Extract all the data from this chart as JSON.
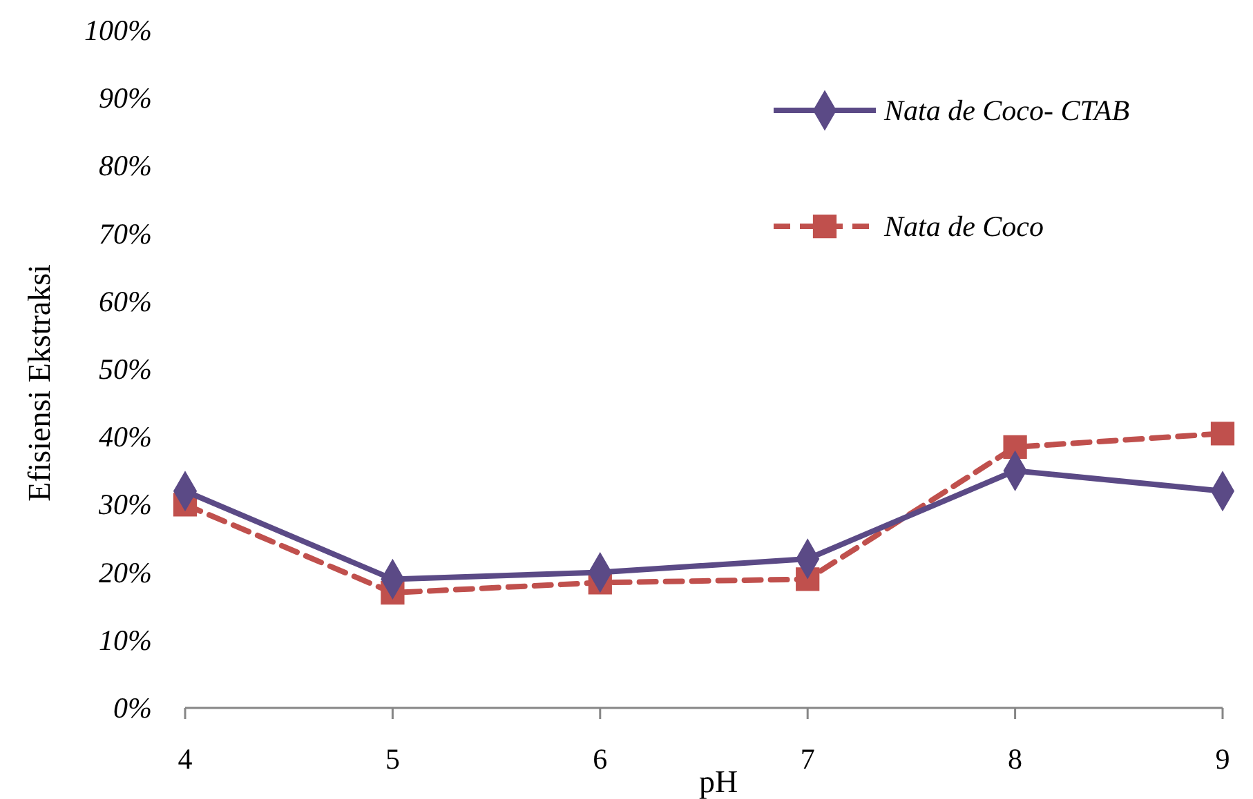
{
  "chart_data": {
    "type": "line",
    "xlabel": "pH",
    "ylabel": "Efisiensi Ekstraksi",
    "x": [
      4,
      5,
      6,
      7,
      8,
      9
    ],
    "xlim": [
      4,
      9
    ],
    "xticks": [
      4,
      5,
      6,
      7,
      8,
      9
    ],
    "ylim": [
      0,
      100
    ],
    "yticks": [
      {
        "value": 0,
        "label": "0%"
      },
      {
        "value": 10,
        "label": "10%"
      },
      {
        "value": 20,
        "label": "20%"
      },
      {
        "value": 30,
        "label": "30%"
      },
      {
        "value": 40,
        "label": "40%"
      },
      {
        "value": 50,
        "label": "50%"
      },
      {
        "value": 60,
        "label": "60%"
      },
      {
        "value": 70,
        "label": "70%"
      },
      {
        "value": 80,
        "label": "80%"
      },
      {
        "value": 90,
        "label": "90%"
      },
      {
        "value": 100,
        "label": "100%"
      }
    ],
    "grid": false,
    "legend": "top right",
    "series": [
      {
        "name": "Nata de Coco- CTAB",
        "color": "#5b4a86",
        "marker": "diamond",
        "line_style": "solid",
        "values": [
          32,
          19,
          20,
          22,
          35,
          32
        ]
      },
      {
        "name": "Nata de Coco",
        "color": "#c0504d",
        "marker": "square",
        "line_style": "dashed",
        "values": [
          30,
          17,
          18.5,
          19,
          38.5,
          40.5
        ]
      }
    ]
  }
}
